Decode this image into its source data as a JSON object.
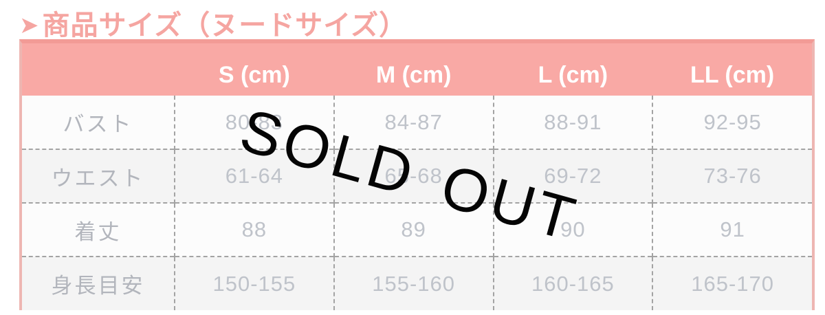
{
  "title": {
    "arrow": "➤",
    "text": "商品サイズ（ヌードサイズ）"
  },
  "overlay": {
    "sold_out_label": "SOLD OUT"
  },
  "chart_data": {
    "type": "table",
    "title": "商品サイズ（ヌードサイズ）",
    "columns": [
      "",
      "S (cm)",
      "M (cm)",
      "L (cm)",
      "LL (cm)"
    ],
    "rows": [
      {
        "label": "バスト",
        "values": [
          "80-83",
          "84-87",
          "88-91",
          "92-95"
        ]
      },
      {
        "label": "ウエスト",
        "values": [
          "61-64",
          "65-68",
          "69-72",
          "73-76"
        ]
      },
      {
        "label": "着丈",
        "values": [
          "88",
          "89",
          "90",
          "91"
        ]
      },
      {
        "label": "身長目安",
        "values": [
          "150-155",
          "155-160",
          "160-165",
          "165-170"
        ]
      }
    ]
  },
  "colors": {
    "title_pink": "#f5a5a1",
    "header_bg": "#f9a9a5",
    "header_text": "#ffffff",
    "table_border": "#eeb6b2",
    "top_bar": "#f29b96",
    "cell_text": "#bfc3ca",
    "label_text": "#b2b5bc",
    "dashed_line": "#a3a3a3",
    "alt_row_bg": "#f4f4f4",
    "sold_out_text": "#050505"
  }
}
